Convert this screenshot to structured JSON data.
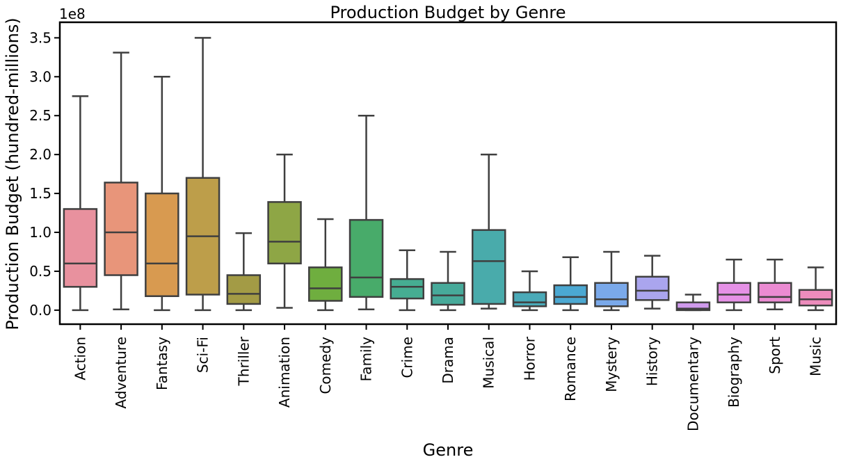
{
  "chart_data": {
    "type": "box",
    "title": "Production Budget by Genre",
    "xlabel": "Genre",
    "ylabel": "Production Budget (hundred-millions)",
    "offset_label": "1e8",
    "ylim": [
      -0.18,
      3.7
    ],
    "yticks": [
      0.0,
      0.5,
      1.0,
      1.5,
      2.0,
      2.5,
      3.0,
      3.5
    ],
    "ytick_labels": [
      "0.0",
      "0.5",
      "1.0",
      "1.5",
      "2.0",
      "2.5",
      "3.0",
      "3.5"
    ],
    "grid": false,
    "legend": "none",
    "categories": [
      "Action",
      "Adventure",
      "Fantasy",
      "Sci-Fi",
      "Thriller",
      "Animation",
      "Comedy",
      "Family",
      "Crime",
      "Drama",
      "Musical",
      "Horror",
      "Romance",
      "Mystery",
      "History",
      "Documentary",
      "Biography",
      "Sport",
      "Music"
    ],
    "colors": [
      "#e8919e",
      "#e8957a",
      "#d89a50",
      "#bd9e4a",
      "#a39b45",
      "#8ea645",
      "#6fae3f",
      "#48ab6a",
      "#46ad92",
      "#47aa9a",
      "#49abab",
      "#4aaab8",
      "#4ba8d2",
      "#7aa9ea",
      "#aaa5ee",
      "#cf9aec",
      "#e591e6",
      "#eb8bd2",
      "#ed8cbc"
    ],
    "boxes": [
      {
        "whislo": 0.0,
        "q1": 0.3,
        "med": 0.6,
        "q3": 1.3,
        "whishi": 2.75
      },
      {
        "whislo": 0.01,
        "q1": 0.45,
        "med": 1.0,
        "q3": 1.64,
        "whishi": 3.31
      },
      {
        "whislo": 0.0,
        "q1": 0.18,
        "med": 0.6,
        "q3": 1.5,
        "whishi": 3.0
      },
      {
        "whislo": 0.0,
        "q1": 0.2,
        "med": 0.95,
        "q3": 1.7,
        "whishi": 3.5
      },
      {
        "whislo": 0.0,
        "q1": 0.08,
        "med": 0.21,
        "q3": 0.45,
        "whishi": 0.99
      },
      {
        "whislo": 0.03,
        "q1": 0.6,
        "med": 0.88,
        "q3": 1.39,
        "whishi": 2.0
      },
      {
        "whislo": 0.0,
        "q1": 0.12,
        "med": 0.28,
        "q3": 0.55,
        "whishi": 1.17
      },
      {
        "whislo": 0.01,
        "q1": 0.17,
        "med": 0.42,
        "q3": 1.16,
        "whishi": 2.5
      },
      {
        "whislo": 0.0,
        "q1": 0.15,
        "med": 0.3,
        "q3": 0.4,
        "whishi": 0.77
      },
      {
        "whislo": 0.0,
        "q1": 0.07,
        "med": 0.19,
        "q3": 0.35,
        "whishi": 0.75
      },
      {
        "whislo": 0.02,
        "q1": 0.08,
        "med": 0.63,
        "q3": 1.03,
        "whishi": 2.0
      },
      {
        "whislo": 0.0,
        "q1": 0.05,
        "med": 0.1,
        "q3": 0.23,
        "whishi": 0.5
      },
      {
        "whislo": 0.0,
        "q1": 0.08,
        "med": 0.17,
        "q3": 0.32,
        "whishi": 0.68
      },
      {
        "whislo": 0.0,
        "q1": 0.05,
        "med": 0.14,
        "q3": 0.35,
        "whishi": 0.75
      },
      {
        "whislo": 0.02,
        "q1": 0.13,
        "med": 0.25,
        "q3": 0.43,
        "whishi": 0.7
      },
      {
        "whislo": 0.0,
        "q1": 0.0,
        "med": 0.02,
        "q3": 0.1,
        "whishi": 0.2
      },
      {
        "whislo": 0.0,
        "q1": 0.1,
        "med": 0.2,
        "q3": 0.35,
        "whishi": 0.65
      },
      {
        "whislo": 0.01,
        "q1": 0.1,
        "med": 0.17,
        "q3": 0.35,
        "whishi": 0.65
      },
      {
        "whislo": 0.0,
        "q1": 0.06,
        "med": 0.14,
        "q3": 0.26,
        "whishi": 0.55
      }
    ]
  }
}
